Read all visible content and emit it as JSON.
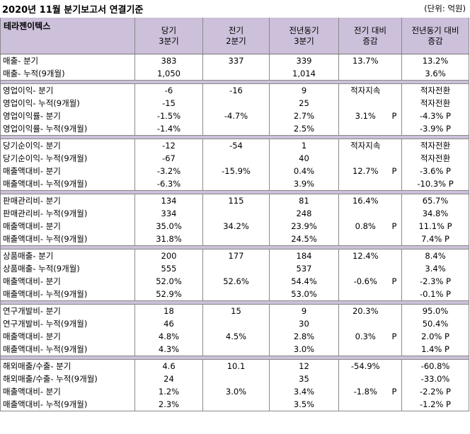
{
  "title": "2020년 11월 분기보고서 연결기준",
  "unit": "(단위: 억원)",
  "header": {
    "company": "테라젠이텍스",
    "col1": [
      "당기",
      "3분기"
    ],
    "col2": [
      "전기",
      "2분기"
    ],
    "col3": [
      "전년동기",
      "3분기"
    ],
    "col4": [
      "전기 대비",
      "증감"
    ],
    "col5": [
      "전년동기 대비",
      "증감"
    ]
  },
  "rows": [
    [
      "매출- 분기",
      "383",
      "337",
      "339",
      "13.7%",
      "",
      "13.2%"
    ],
    [
      "매출- 누적(9개월)",
      "1,050",
      "",
      "1,014",
      "",
      "",
      "3.6%"
    ],
    null,
    [
      "영업이익- 분기",
      "-6",
      "-16",
      "9",
      "적자지속",
      "",
      "적자전환"
    ],
    [
      "영업이익- 누적(9개월)",
      "-15",
      "",
      "25",
      "",
      "",
      "적자전환"
    ],
    [
      "영업이익률- 분기",
      "-1.5%",
      "-4.7%",
      "2.7%",
      "3.1%",
      "P",
      "-4.3% P"
    ],
    [
      "영업이익률- 누적(9개월)",
      "-1.4%",
      "",
      "2.5%",
      "",
      "",
      "-3.9% P"
    ],
    null,
    [
      "당기순이익- 분기",
      "-12",
      "-54",
      "1",
      "적자지속",
      "",
      "적자전환"
    ],
    [
      "당기순이익- 누적(9개월)",
      "-67",
      "",
      "40",
      "",
      "",
      "적자전환"
    ],
    [
      "매출액대비- 분기",
      "-3.2%",
      "-15.9%",
      "0.4%",
      "12.7%",
      "P",
      "-3.6% P"
    ],
    [
      "매출액대비- 누적(9개월)",
      "-6.3%",
      "",
      "3.9%",
      "",
      "",
      "-10.3% P"
    ],
    null,
    [
      "판매관리비- 분기",
      "134",
      "115",
      "81",
      "16.4%",
      "",
      "65.7%"
    ],
    [
      "판매관리비- 누적(9개월)",
      "334",
      "",
      "248",
      "",
      "",
      "34.8%"
    ],
    [
      "매출액대비- 분기",
      "35.0%",
      "34.2%",
      "23.9%",
      "0.8%",
      "P",
      "11.1% P"
    ],
    [
      "매출액대비- 누적(9개월)",
      "31.8%",
      "",
      "24.5%",
      "",
      "",
      "7.4% P"
    ],
    null,
    [
      "상품매출- 분기",
      "200",
      "177",
      "184",
      "12.4%",
      "",
      "8.4%"
    ],
    [
      "상품매출- 누적(9개월)",
      "555",
      "",
      "537",
      "",
      "",
      "3.4%"
    ],
    [
      "매출액대비- 분기",
      "52.0%",
      "52.6%",
      "54.4%",
      "-0.6%",
      "P",
      "-2.3% P"
    ],
    [
      "매출액대비- 누적(9개월)",
      "52.9%",
      "",
      "53.0%",
      "",
      "",
      "-0.1% P"
    ],
    null,
    [
      "연구개발비- 분기",
      "18",
      "15",
      "9",
      "20.3%",
      "",
      "95.0%"
    ],
    [
      "연구개발비- 누적(9개월)",
      "46",
      "",
      "30",
      "",
      "",
      "50.4%"
    ],
    [
      "매출액대비- 분기",
      "4.8%",
      "4.5%",
      "2.8%",
      "0.3%",
      "P",
      "2.0% P"
    ],
    [
      "매출액대비- 누적(9개월)",
      "4.3%",
      "",
      "3.0%",
      "",
      "",
      "1.4% P"
    ],
    null,
    [
      "해외매출/수출- 분기",
      "4.6",
      "10.1",
      "12",
      "-54.9%",
      "",
      "-60.8%"
    ],
    [
      "해외매출/수출- 누적(9개월)",
      "24",
      "",
      "35",
      "",
      "",
      "-33.0%"
    ],
    [
      "매출액대비- 분기",
      "1.2%",
      "3.0%",
      "3.4%",
      "-1.8%",
      "P",
      "-2.2% P"
    ],
    [
      "매출액대비- 누적(9개월)",
      "2.3%",
      "",
      "3.5%",
      "",
      "",
      "-1.2% P"
    ]
  ]
}
